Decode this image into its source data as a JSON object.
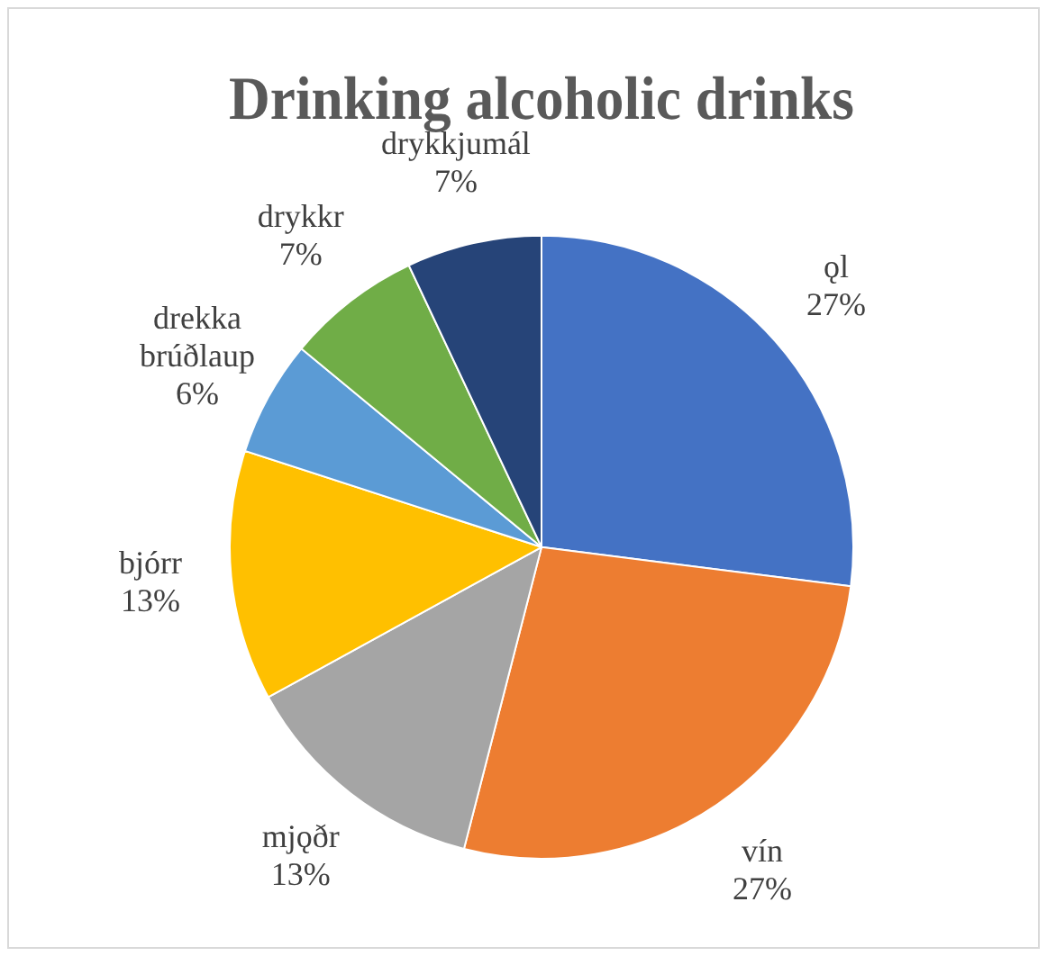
{
  "chart_data": {
    "type": "pie",
    "title": "Drinking alcoholic drinks",
    "categories": [
      "ǫl",
      "vín",
      "mjǫðr",
      "bjórr",
      "drekka brúðlaup",
      "drykkr",
      "drykkjumál"
    ],
    "values": [
      27,
      27,
      13,
      13,
      6,
      7,
      7
    ],
    "colors": [
      "#4472c4",
      "#ed7d31",
      "#a5a5a5",
      "#ffc000",
      "#5b9bd5",
      "#70ad47",
      "#264478"
    ],
    "value_labels": [
      "27%",
      "27%",
      "13%",
      "13%",
      "6%",
      "7%",
      "7%"
    ],
    "legend": false
  }
}
